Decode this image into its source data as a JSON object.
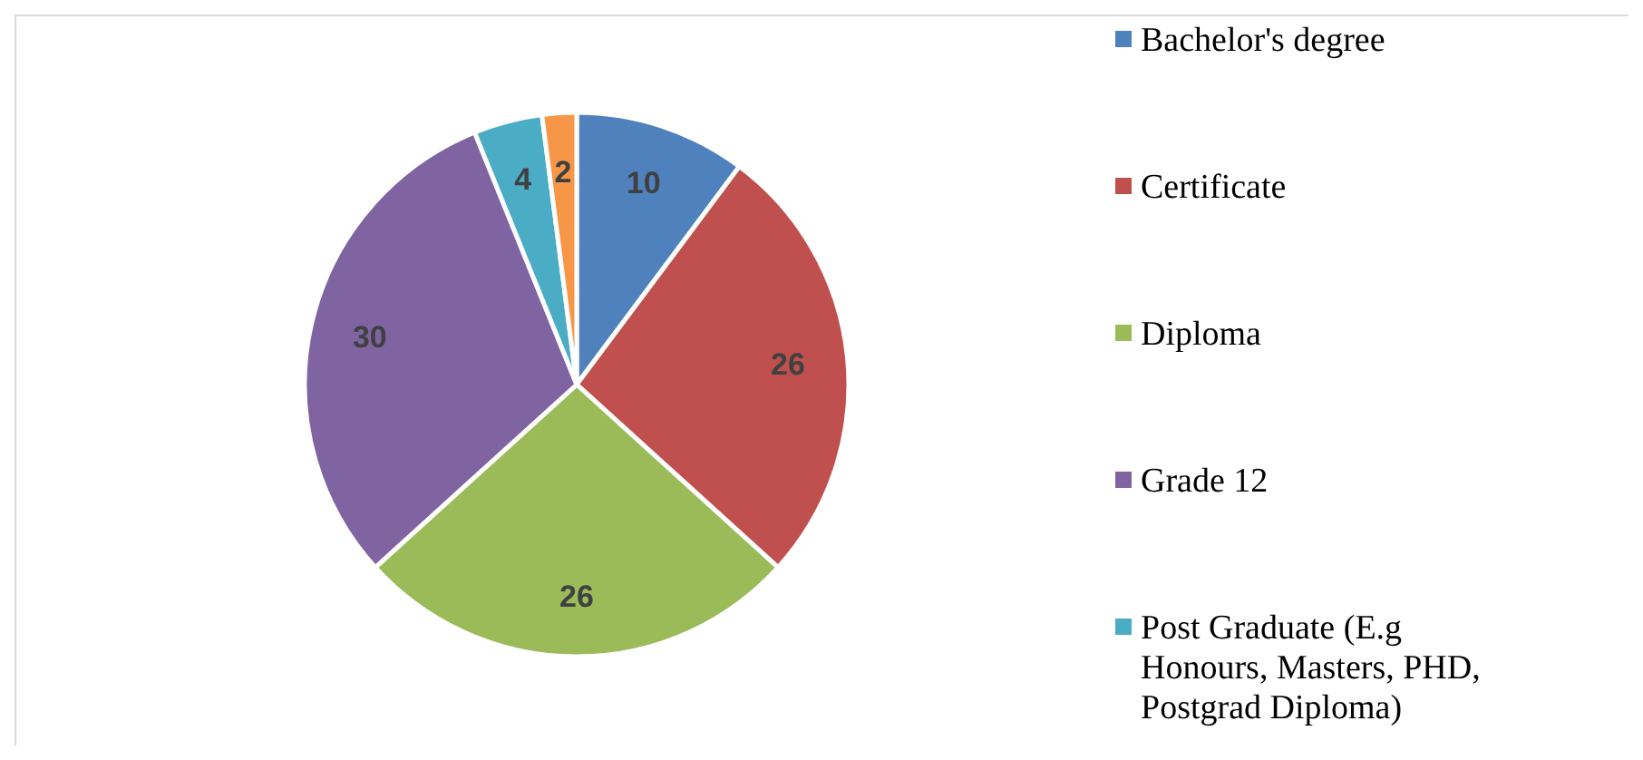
{
  "chart_data": {
    "type": "pie",
    "categories": [
      "Bachelor's degree",
      "Certificate",
      "Diploma",
      "Grade 12",
      "Post Graduate (E.g Honours, Masters, PHD, Postgrad Diploma)",
      null
    ],
    "values": [
      10,
      26,
      26,
      30,
      4,
      2
    ],
    "colors": [
      "#4f81bd",
      "#c0504d",
      "#9bbb59",
      "#8064a2",
      "#4bacc6",
      "#f79646"
    ],
    "data_labels": true,
    "legend": "right"
  }
}
